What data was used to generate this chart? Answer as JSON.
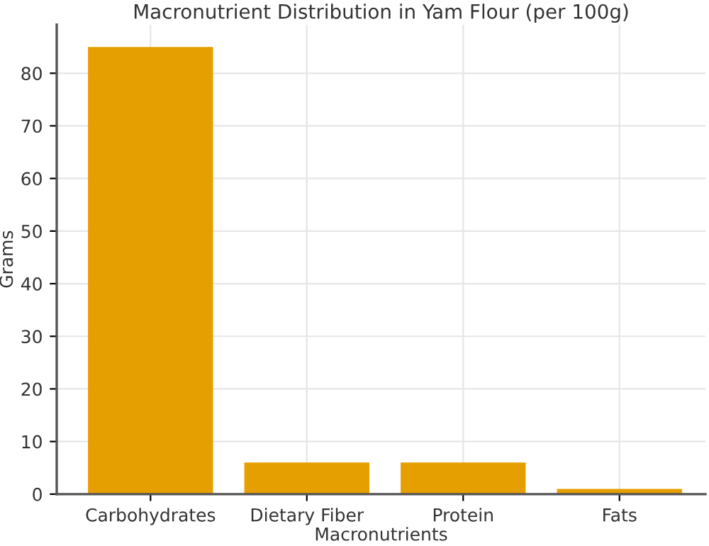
{
  "chart_data": {
    "type": "bar",
    "title": "Macronutrient Distribution in Yam Flour (per 100g)",
    "xlabel": "Macronutrients",
    "ylabel": "Grams",
    "categories": [
      "Carbohydrates",
      "Dietary Fiber",
      "Protein",
      "Fats"
    ],
    "values": [
      85,
      6,
      6,
      1
    ],
    "color": "#e69f00",
    "ylim": [
      0,
      89.25
    ],
    "yticks": [
      0,
      10,
      20,
      30,
      40,
      50,
      60,
      70,
      80
    ],
    "grid": true
  }
}
